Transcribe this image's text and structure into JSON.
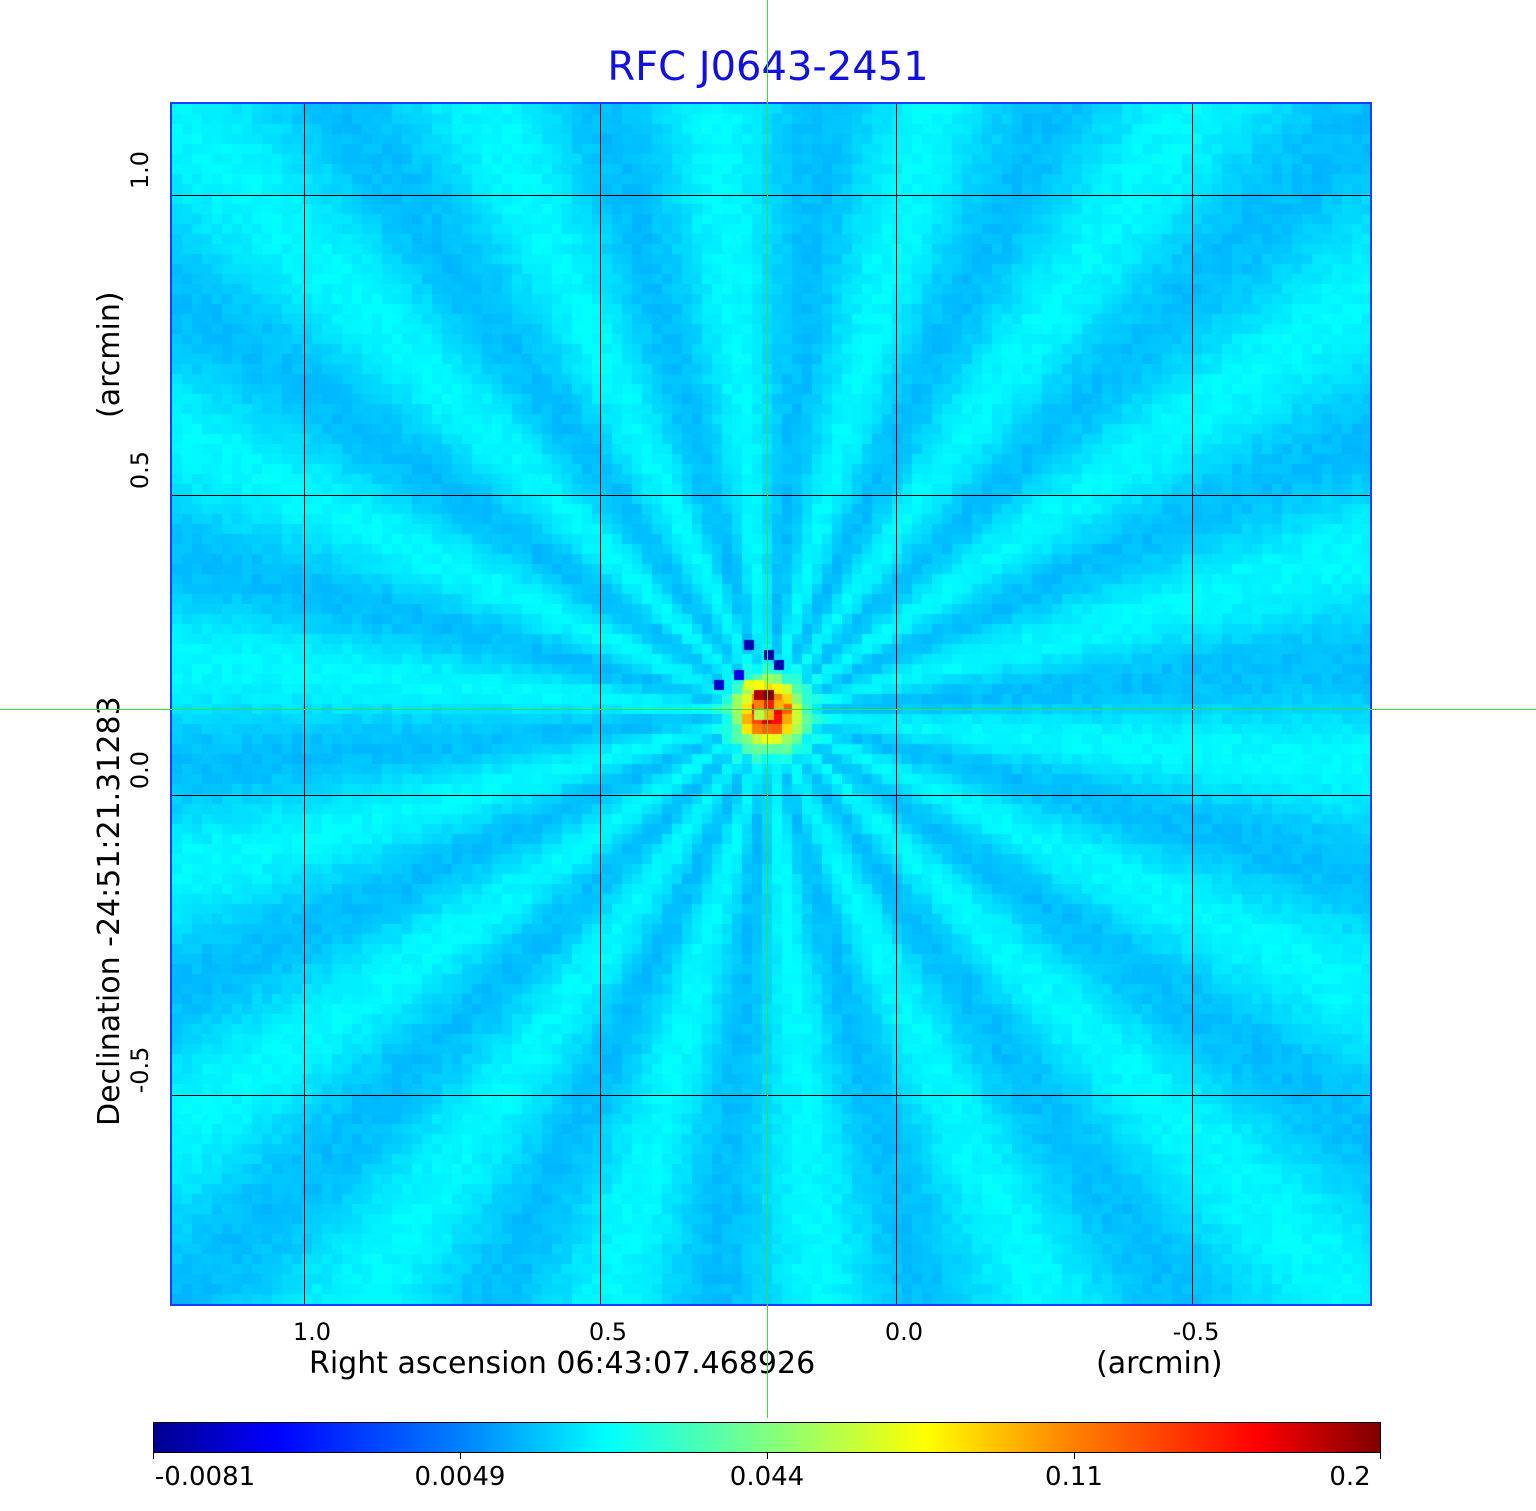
{
  "chart_data": {
    "type": "heatmap",
    "title": "RFC J0643-2451",
    "xlabel": "Right ascension  06:43:07.468926",
    "xunit": "(arcmin)",
    "ylabel": "Declination  -24:51:21.31283",
    "yunit": "(arcmin)",
    "x_ticks": [
      "1.0",
      "0.5",
      "0.0",
      "-0.5"
    ],
    "y_ticks": [
      "1.0",
      "0.5",
      "0.0",
      "-0.5"
    ],
    "grid": true,
    "colormap": "jet",
    "colorbar_ticks": [
      "-0.0081",
      "0.0049",
      "0.044",
      "0.11",
      "0.2"
    ],
    "colorbar_range": [
      -0.0081,
      0.2
    ],
    "crosshair_color": "#3ddc3d",
    "title_color": "#1010e0"
  }
}
